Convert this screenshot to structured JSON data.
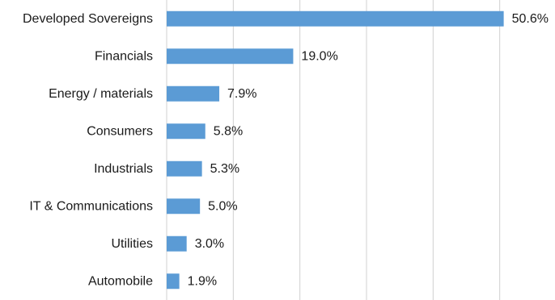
{
  "chart_data": {
    "type": "bar",
    "orientation": "horizontal",
    "categories": [
      "Developed Sovereigns",
      "Financials",
      "Energy / materials",
      "Consumers",
      "Industrials",
      "IT & Communications",
      "Utilities",
      "Automobile"
    ],
    "values": [
      50.6,
      19.0,
      7.9,
      5.8,
      5.3,
      5.0,
      3.0,
      1.9
    ],
    "value_labels": [
      "50.6%",
      "19.0%",
      "7.9%",
      "5.8%",
      "5.3%",
      "5.0%",
      "3.0%",
      "1.9%"
    ],
    "value_unit": "%",
    "xlim": [
      0,
      60
    ],
    "grid": true,
    "gridlines": [
      0,
      10,
      20,
      30,
      40,
      50,
      60
    ],
    "legend": "none",
    "title": "",
    "xlabel": "",
    "ylabel": "",
    "bar_color": "#5b9bd5"
  }
}
